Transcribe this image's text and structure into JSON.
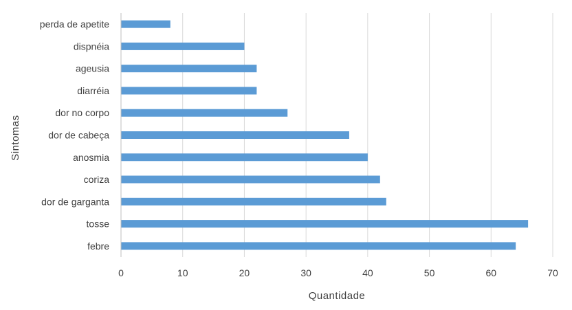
{
  "chart_data": {
    "type": "bar",
    "orientation": "horizontal",
    "categories": [
      "febre",
      "tosse",
      "dor de garganta",
      "coriza",
      "anosmia",
      "dor de cabeça",
      "dor no corpo",
      "diarréia",
      "ageusia",
      "dispnéia",
      "perda de apetite"
    ],
    "values": [
      64,
      66,
      43,
      42,
      40,
      37,
      27,
      22,
      22,
      20,
      8
    ],
    "xlabel": "Quantidade",
    "ylabel": "Sintomas",
    "xlim": [
      0,
      70
    ],
    "xticks": [
      "0",
      "10",
      "20",
      "30",
      "40",
      "50",
      "60",
      "70"
    ],
    "grid": "vertical",
    "bar_color": "#5b9bd5",
    "grid_color": "#d9d9d9",
    "axis_color": "#bfbfbf"
  }
}
